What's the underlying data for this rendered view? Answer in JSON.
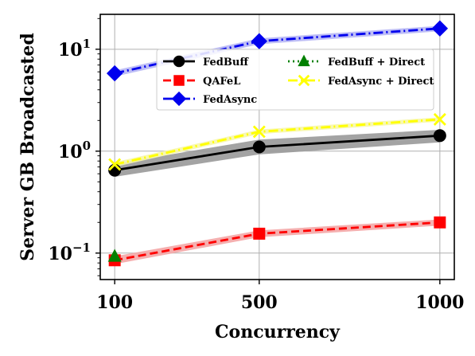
{
  "chart_data": {
    "type": "line",
    "x_scale": "linear",
    "y_scale": "log",
    "xlabel": "Concurrency",
    "ylabel": "Server GB Broadcasted",
    "x_ticks": [
      100,
      500,
      1000
    ],
    "x_tick_labels": [
      "100",
      "500",
      "1000"
    ],
    "xlim": [
      60,
      1040
    ],
    "ylim": [
      0.055,
      22
    ],
    "y_ticks": [
      0.1,
      1,
      10
    ],
    "y_tick_labels": [
      {
        "base": "10",
        "exp": "−1"
      },
      {
        "base": "10",
        "exp": "0"
      },
      {
        "base": "10",
        "exp": "1"
      }
    ],
    "grid": true,
    "legend": {
      "placement": "upper-center",
      "columns": 2
    },
    "series": [
      {
        "name": "FedBuff",
        "color": "#000000",
        "marker": "circle",
        "line_style": "solid",
        "x": [
          100,
          500,
          1000
        ],
        "y": [
          0.65,
          1.1,
          1.42
        ],
        "band_low": [
          0.56,
          0.93,
          1.22
        ],
        "band_high": [
          0.75,
          1.3,
          1.62
        ],
        "band_color": "#999999"
      },
      {
        "name": "QAFeL",
        "color": "#ff0000",
        "marker": "square",
        "line_style": "dashed",
        "x": [
          100,
          500,
          1000
        ],
        "y": [
          0.085,
          0.155,
          0.2
        ],
        "band_low": [
          0.078,
          0.143,
          0.186
        ],
        "band_high": [
          0.093,
          0.167,
          0.214
        ],
        "band_color": "#f4a6a6"
      },
      {
        "name": "FedAsync",
        "color": "#0000ee",
        "marker": "diamond",
        "line_style": "dashdot",
        "x": [
          100,
          500,
          1000
        ],
        "y": [
          5.8,
          12,
          16
        ],
        "band_low": [
          5.4,
          11.2,
          15
        ],
        "band_high": [
          6.2,
          12.8,
          17
        ],
        "band_color": "#b7b7f5"
      },
      {
        "name": "FedBuff + Direct",
        "color": "#008000",
        "marker": "triangle",
        "line_style": "dotted",
        "x": [
          100
        ],
        "y": [
          0.093
        ]
      },
      {
        "name": "FedAsync + Direct",
        "color": "#ffff00",
        "marker": "x",
        "line_style": "dashdot",
        "x": [
          100,
          500,
          1000
        ],
        "y": [
          0.74,
          1.55,
          2.05
        ],
        "band_low": [
          0.7,
          1.47,
          1.95
        ],
        "band_high": [
          0.78,
          1.63,
          2.15
        ],
        "band_color": "#f7f7a8"
      }
    ],
    "legend_order": [
      0,
      1,
      2,
      3,
      4
    ]
  }
}
